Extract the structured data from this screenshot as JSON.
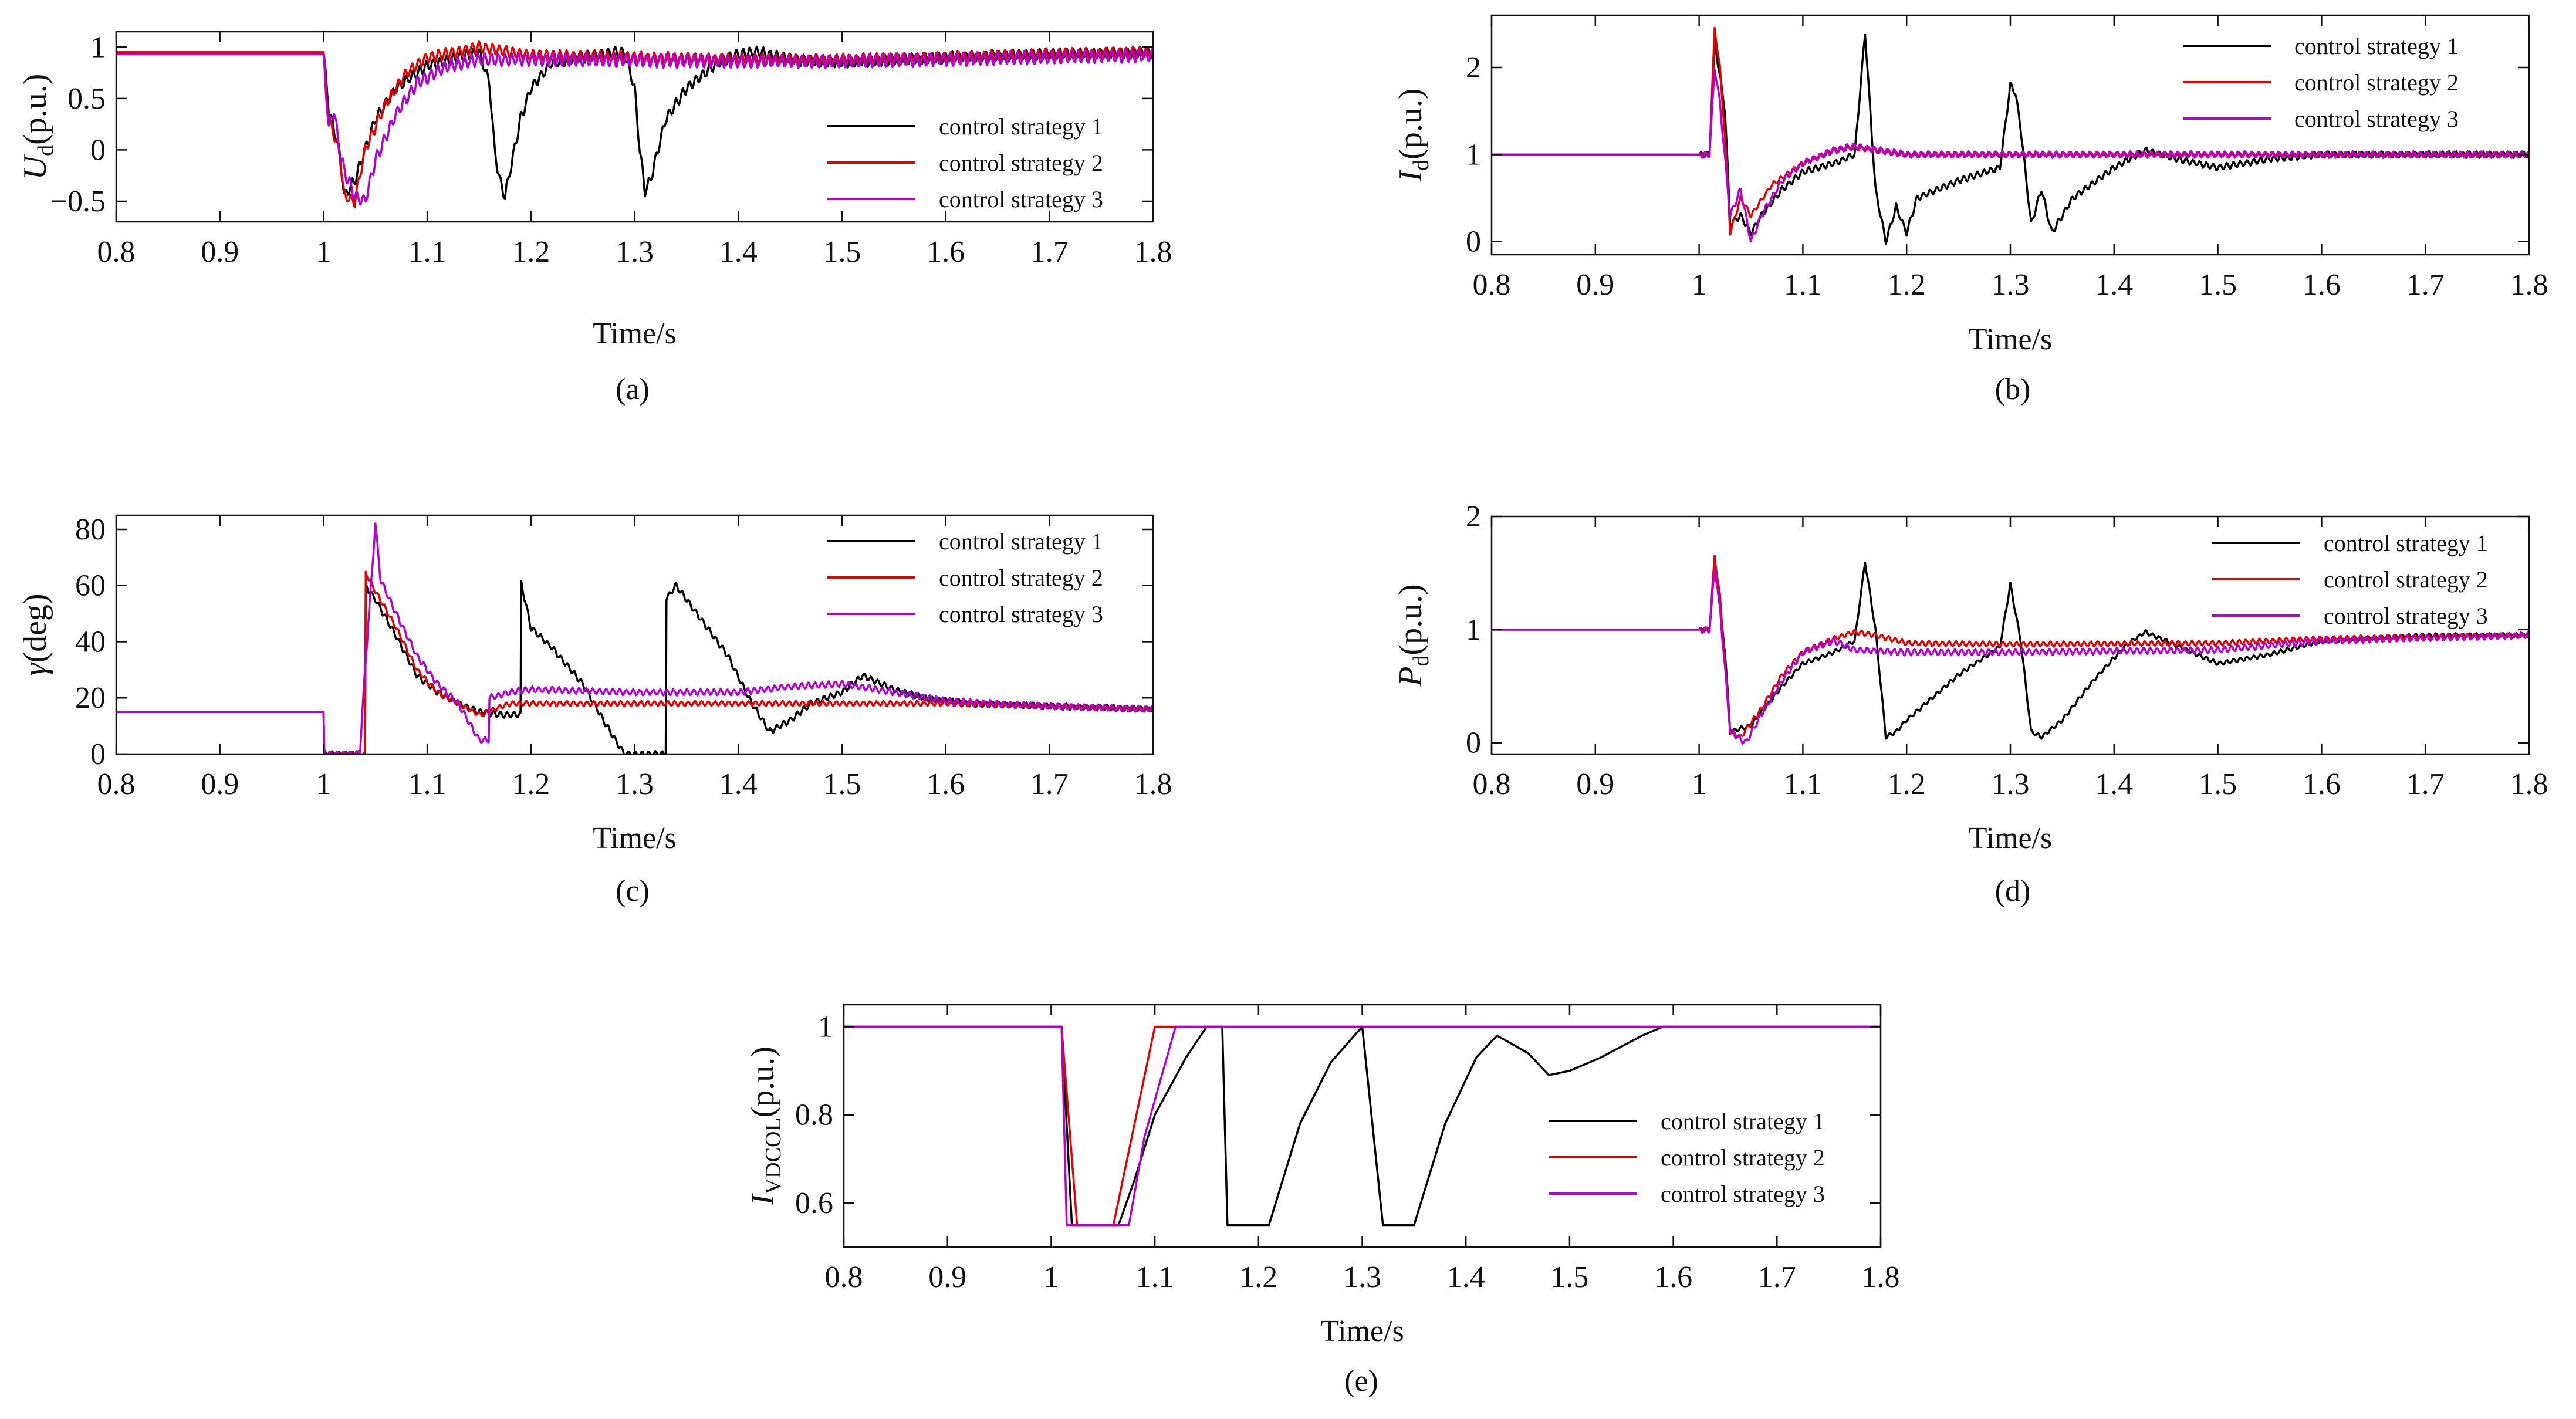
{
  "figure": {
    "panels": [
      {
        "caption": "(a)",
        "ylabel_main": "U",
        "ylabel_sub": "d",
        "ylabel_unit": "(p.u.)",
        "xlabel": "Time/s"
      },
      {
        "caption": "(b)",
        "ylabel_main": "I",
        "ylabel_sub": "d",
        "ylabel_unit": "(p.u.)",
        "xlabel": "Time/s"
      },
      {
        "caption": "(c)",
        "ylabel_main": "γ",
        "ylabel_sub": "",
        "ylabel_unit": "(deg)",
        "xlabel": "Time/s"
      },
      {
        "caption": "(d)",
        "ylabel_main": "P",
        "ylabel_sub": "d",
        "ylabel_unit": "(p.u.)",
        "xlabel": "Time/s"
      },
      {
        "caption": "(e)",
        "ylabel_main": "I",
        "ylabel_sub": "VDCOL",
        "ylabel_unit": "(p.u.)",
        "xlabel": "Time/s"
      }
    ]
  },
  "chart_data": [
    {
      "type": "line",
      "id": "a",
      "title": "",
      "xlabel": "Time/s",
      "ylabel": "U_d (p.u.)",
      "xlim": [
        0.8,
        1.8
      ],
      "ylim": [
        -0.7,
        1.15
      ],
      "xticks": [
        "0.8",
        "0.9",
        "1",
        "1.1",
        "1.2",
        "1.3",
        "1.4",
        "1.5",
        "1.6",
        "1.7",
        "1.8"
      ],
      "yticks": [
        {
          "v": 1,
          "label": "1"
        },
        {
          "v": 0.5,
          "label": "0.5"
        },
        {
          "v": 0,
          "label": "0"
        },
        {
          "v": -0.5,
          "label": "−0.5"
        }
      ],
      "legend_position": "center-right",
      "series": [
        {
          "name": "control strategy 1",
          "color": "#000000",
          "x": [
            0.8,
            1.0,
            1.005,
            1.015,
            1.02,
            1.03,
            1.05,
            1.07,
            1.1,
            1.13,
            1.15,
            1.16,
            1.165,
            1.17,
            1.175,
            1.18,
            1.19,
            1.2,
            1.22,
            1.25,
            1.28,
            1.29,
            1.3,
            1.305,
            1.31,
            1.315,
            1.32,
            1.33,
            1.35,
            1.38,
            1.4,
            1.42,
            1.45,
            1.5,
            1.55,
            1.6,
            1.7,
            1.8
          ],
          "y": [
            0.95,
            0.95,
            0.4,
            0.0,
            -0.45,
            -0.3,
            0.3,
            0.6,
            0.82,
            0.9,
            0.95,
            0.65,
            0.0,
            -0.3,
            -0.45,
            -0.2,
            0.3,
            0.6,
            0.85,
            0.9,
            0.95,
            0.95,
            0.6,
            0.0,
            -0.4,
            -0.3,
            -0.1,
            0.3,
            0.6,
            0.85,
            0.93,
            0.95,
            0.88,
            0.85,
            0.88,
            0.9,
            0.93,
            0.95
          ],
          "ripple": 0.06
        },
        {
          "name": "control strategy 2",
          "color": "#e80000",
          "x": [
            0.8,
            1.0,
            1.005,
            1.015,
            1.02,
            1.03,
            1.04,
            1.06,
            1.08,
            1.1,
            1.13,
            1.15,
            1.2,
            1.3,
            1.4,
            1.5,
            1.6,
            1.7,
            1.8
          ],
          "y": [
            0.95,
            0.95,
            0.3,
            0.0,
            -0.45,
            -0.5,
            0.0,
            0.45,
            0.75,
            0.9,
            0.96,
            1.0,
            0.92,
            0.9,
            0.88,
            0.88,
            0.9,
            0.93,
            0.95
          ],
          "ripple": 0.06
        },
        {
          "name": "control strategy 3",
          "color": "#b400d2",
          "x": [
            0.8,
            1.0,
            1.005,
            1.01,
            1.015,
            1.02,
            1.03,
            1.04,
            1.05,
            1.07,
            1.09,
            1.12,
            1.15,
            1.2,
            1.3,
            1.4,
            1.5,
            1.6,
            1.7,
            1.8
          ],
          "y": [
            0.93,
            0.93,
            0.2,
            0.4,
            0.0,
            -0.2,
            -0.45,
            -0.5,
            -0.1,
            0.35,
            0.65,
            0.82,
            0.88,
            0.88,
            0.87,
            0.86,
            0.86,
            0.88,
            0.9,
            0.92
          ],
          "ripple": 0.07
        }
      ]
    },
    {
      "type": "line",
      "id": "b",
      "title": "",
      "xlabel": "Time/s",
      "ylabel": "I_d (p.u.)",
      "xlim": [
        0.8,
        1.8
      ],
      "ylim": [
        -0.15,
        2.6
      ],
      "xticks": [
        "0.8",
        "0.9",
        "1",
        "1.1",
        "1.2",
        "1.3",
        "1.4",
        "1.5",
        "1.6",
        "1.7",
        "1.8"
      ],
      "yticks": [
        {
          "v": 2,
          "label": "2"
        },
        {
          "v": 1,
          "label": "1"
        },
        {
          "v": 0,
          "label": "0"
        }
      ],
      "legend_position": "top-right",
      "series": [
        {
          "name": "control strategy 1",
          "color": "#000000",
          "x": [
            0.8,
            1.0,
            1.01,
            1.015,
            1.025,
            1.03,
            1.04,
            1.05,
            1.06,
            1.08,
            1.1,
            1.13,
            1.15,
            1.16,
            1.165,
            1.17,
            1.18,
            1.19,
            1.2,
            1.21,
            1.25,
            1.29,
            1.3,
            1.305,
            1.31,
            1.32,
            1.33,
            1.34,
            1.36,
            1.4,
            1.43,
            1.46,
            1.5,
            1.55,
            1.6,
            1.7,
            1.8
          ],
          "y": [
            1.0,
            1.0,
            1.0,
            2.3,
            1.5,
            0.2,
            0.3,
            0.1,
            0.3,
            0.6,
            0.8,
            0.9,
            1.0,
            2.4,
            1.5,
            0.6,
            0.0,
            0.4,
            0.1,
            0.5,
            0.7,
            0.85,
            1.8,
            1.7,
            1.3,
            0.2,
            0.6,
            0.1,
            0.5,
            0.85,
            1.05,
            0.95,
            0.85,
            0.95,
            1.0,
            1.0,
            1.0
          ],
          "ripple": 0.04
        },
        {
          "name": "control strategy 2",
          "color": "#e80000",
          "x": [
            0.8,
            1.0,
            1.01,
            1.015,
            1.02,
            1.025,
            1.03,
            1.04,
            1.05,
            1.07,
            1.1,
            1.13,
            1.15,
            1.2,
            1.3,
            1.5,
            1.8
          ],
          "y": [
            1.0,
            1.0,
            1.0,
            2.45,
            2.0,
            1.2,
            0.1,
            0.5,
            0.3,
            0.65,
            0.9,
            1.05,
            1.08,
            1.0,
            1.0,
            1.0,
            1.0
          ],
          "ripple": 0.03
        },
        {
          "name": "control strategy 3",
          "color": "#b400d2",
          "x": [
            0.8,
            1.0,
            1.01,
            1.015,
            1.02,
            1.03,
            1.04,
            1.05,
            1.06,
            1.08,
            1.1,
            1.13,
            1.15,
            1.2,
            1.3,
            1.5,
            1.8
          ],
          "y": [
            1.0,
            1.0,
            1.0,
            2.0,
            1.6,
            0.3,
            0.6,
            0.0,
            0.3,
            0.7,
            0.9,
            1.05,
            1.1,
            1.0,
            1.0,
            1.0,
            1.0
          ],
          "ripple": 0.04
        }
      ]
    },
    {
      "type": "line",
      "id": "c",
      "title": "",
      "xlabel": "Time/s",
      "ylabel": "γ (deg)",
      "xlim": [
        0.8,
        1.8
      ],
      "ylim": [
        0,
        85
      ],
      "xticks": [
        "0.8",
        "0.9",
        "1",
        "1.1",
        "1.2",
        "1.3",
        "1.4",
        "1.5",
        "1.6",
        "1.7",
        "1.8"
      ],
      "yticks": [
        {
          "v": 80,
          "label": "80"
        },
        {
          "v": 60,
          "label": "60"
        },
        {
          "v": 40,
          "label": "40"
        },
        {
          "v": 20,
          "label": "20"
        },
        {
          "v": 0,
          "label": "0"
        }
      ],
      "legend_position": "top-right",
      "series": [
        {
          "name": "control strategy 1",
          "color": "#000000",
          "x": [
            0.8,
            1.0,
            1.0,
            1.04,
            1.04,
            1.05,
            1.07,
            1.09,
            1.11,
            1.13,
            1.15,
            1.17,
            1.19,
            1.19,
            1.2,
            1.22,
            1.25,
            1.27,
            1.29,
            1.29,
            1.33,
            1.33,
            1.34,
            1.36,
            1.39,
            1.41,
            1.43,
            1.45,
            1.47,
            1.5,
            1.52,
            1.55,
            1.58,
            1.62,
            1.7,
            1.8
          ],
          "y": [
            15,
            15,
            0,
            0,
            60,
            55,
            42,
            28,
            22,
            18,
            15,
            14,
            14,
            62,
            45,
            38,
            25,
            12,
            0,
            0,
            0,
            55,
            60,
            50,
            35,
            20,
            8,
            12,
            18,
            22,
            28,
            23,
            20,
            18,
            17,
            16
          ],
          "ripple": 1.2
        },
        {
          "name": "control strategy 2",
          "color": "#e80000",
          "x": [
            0.8,
            1.0,
            1.0,
            1.04,
            1.04,
            1.05,
            1.07,
            1.09,
            1.11,
            1.13,
            1.15,
            1.18,
            1.2,
            1.3,
            1.4,
            1.5,
            1.6,
            1.7,
            1.8
          ],
          "y": [
            15,
            15,
            0,
            0,
            65,
            58,
            45,
            30,
            22,
            18,
            14,
            18,
            18,
            18,
            18,
            18,
            18,
            17,
            16
          ],
          "ripple": 1.0
        },
        {
          "name": "control strategy 3",
          "color": "#b400d2",
          "x": [
            0.8,
            1.0,
            1.0,
            1.035,
            1.04,
            1.05,
            1.055,
            1.07,
            1.09,
            1.11,
            1.13,
            1.15,
            1.16,
            1.16,
            1.18,
            1.2,
            1.3,
            1.4,
            1.45,
            1.5,
            1.55,
            1.6,
            1.7,
            1.8
          ],
          "y": [
            15,
            15,
            0,
            0,
            30,
            82,
            62,
            50,
            35,
            25,
            18,
            5,
            5,
            20,
            22,
            23,
            22,
            22,
            24,
            25,
            22,
            19,
            17,
            16
          ],
          "ripple": 1.2
        }
      ]
    },
    {
      "type": "line",
      "id": "d",
      "title": "",
      "xlabel": "Time/s",
      "ylabel": "P_d (p.u.)",
      "xlim": [
        0.8,
        1.8
      ],
      "ylim": [
        -0.1,
        2.0
      ],
      "xticks": [
        "0.8",
        "0.9",
        "1",
        "1.1",
        "1.2",
        "1.3",
        "1.4",
        "1.5",
        "1.6",
        "1.7",
        "1.8"
      ],
      "yticks": [
        {
          "v": 2,
          "label": "2"
        },
        {
          "v": 1,
          "label": "1"
        },
        {
          "v": 0,
          "label": "0"
        }
      ],
      "legend_position": "top-right",
      "series": [
        {
          "name": "control strategy 1",
          "color": "#000000",
          "x": [
            0.8,
            1.0,
            1.01,
            1.015,
            1.025,
            1.03,
            1.05,
            1.08,
            1.1,
            1.13,
            1.15,
            1.16,
            1.17,
            1.18,
            1.19,
            1.2,
            1.25,
            1.29,
            1.3,
            1.31,
            1.32,
            1.33,
            1.35,
            1.38,
            1.41,
            1.43,
            1.45,
            1.5,
            1.55,
            1.6,
            1.7,
            1.8
          ],
          "y": [
            1.0,
            1.0,
            1.0,
            1.6,
            0.8,
            0.1,
            0.15,
            0.5,
            0.7,
            0.8,
            0.9,
            1.6,
            1.0,
            0.05,
            0.1,
            0.2,
            0.6,
            0.85,
            1.4,
            0.9,
            0.1,
            0.05,
            0.2,
            0.55,
            0.85,
            0.98,
            0.9,
            0.7,
            0.78,
            0.9,
            0.95,
            0.95
          ],
          "ripple": 0.02
        },
        {
          "name": "control strategy 2",
          "color": "#e80000",
          "x": [
            0.8,
            1.0,
            1.01,
            1.015,
            1.02,
            1.03,
            1.04,
            1.06,
            1.08,
            1.1,
            1.13,
            1.15,
            1.17,
            1.2,
            1.3,
            1.5,
            1.6,
            1.8
          ],
          "y": [
            1.0,
            1.0,
            1.0,
            1.65,
            1.3,
            0.1,
            0.05,
            0.3,
            0.6,
            0.8,
            0.92,
            0.98,
            0.95,
            0.88,
            0.87,
            0.88,
            0.92,
            0.95
          ],
          "ripple": 0.025
        },
        {
          "name": "control strategy 3",
          "color": "#b400d2",
          "x": [
            0.8,
            1.0,
            1.01,
            1.015,
            1.02,
            1.03,
            1.045,
            1.06,
            1.08,
            1.1,
            1.13,
            1.15,
            1.2,
            1.3,
            1.5,
            1.6,
            1.8
          ],
          "y": [
            1.0,
            1.0,
            1.0,
            1.55,
            1.2,
            0.1,
            0.0,
            0.25,
            0.55,
            0.8,
            0.9,
            0.82,
            0.8,
            0.8,
            0.82,
            0.9,
            0.95
          ],
          "ripple": 0.03
        }
      ]
    },
    {
      "type": "line",
      "id": "e",
      "title": "",
      "xlabel": "Time/s",
      "ylabel": "I_VDCOL (p.u.)",
      "xlim": [
        0.8,
        1.8
      ],
      "ylim": [
        0.5,
        1.05
      ],
      "xticks": [
        "0.8",
        "0.9",
        "1",
        "1.1",
        "1.2",
        "1.3",
        "1.4",
        "1.5",
        "1.6",
        "1.7",
        "1.8"
      ],
      "yticks": [
        {
          "v": 1,
          "label": "1"
        },
        {
          "v": 0.8,
          "label": "0.8"
        },
        {
          "v": 0.6,
          "label": "0.6"
        }
      ],
      "legend_position": "center-right",
      "series": [
        {
          "name": "control strategy 1",
          "color": "#000000",
          "x": [
            0.8,
            1.0,
            1.01,
            1.02,
            1.065,
            1.08,
            1.1,
            1.13,
            1.15,
            1.165,
            1.17,
            1.21,
            1.24,
            1.27,
            1.3,
            1.32,
            1.35,
            1.38,
            1.41,
            1.43,
            1.46,
            1.48,
            1.5,
            1.53,
            1.57,
            1.59,
            1.8
          ],
          "y": [
            1.0,
            1.0,
            1.0,
            0.55,
            0.55,
            0.65,
            0.8,
            0.93,
            1.0,
            1.0,
            0.55,
            0.55,
            0.78,
            0.92,
            1.0,
            0.55,
            0.55,
            0.78,
            0.93,
            0.98,
            0.94,
            0.89,
            0.9,
            0.93,
            0.98,
            1.0,
            1.0
          ]
        },
        {
          "name": "control strategy 2",
          "color": "#e80000",
          "x": [
            0.8,
            1.0,
            1.01,
            1.025,
            1.06,
            1.1,
            1.11,
            1.8
          ],
          "y": [
            1.0,
            1.0,
            1.0,
            0.55,
            0.55,
            1.0,
            1.0,
            1.0
          ]
        },
        {
          "name": "control strategy 3",
          "color": "#b400d2",
          "x": [
            0.8,
            1.0,
            1.01,
            1.015,
            1.075,
            1.09,
            1.12,
            1.8
          ],
          "y": [
            1.0,
            1.0,
            1.0,
            0.55,
            0.55,
            0.75,
            1.0,
            1.0
          ]
        }
      ]
    }
  ]
}
